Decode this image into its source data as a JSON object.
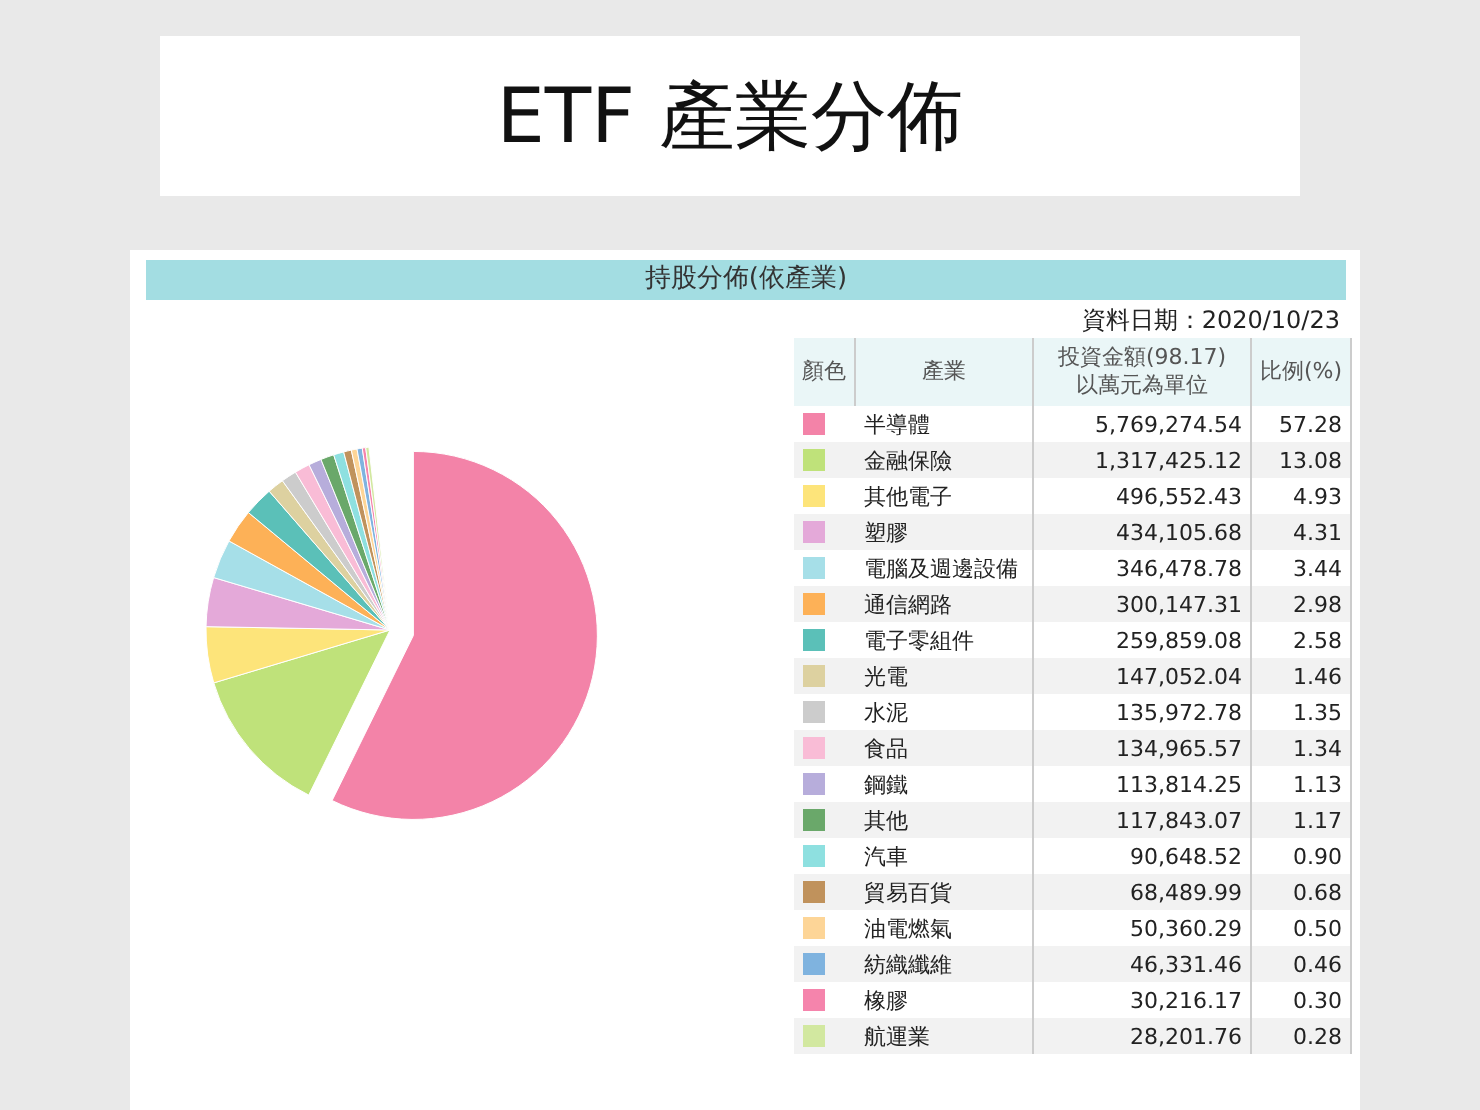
{
  "chart_data": {
    "type": "pie",
    "title": "ETF 產業分佈",
    "subtitle": "持股分佈(依產業)",
    "annotations": [
      "資料日期：2020/10/23",
      "顏色",
      "產業",
      "投資金額(98.17)",
      "以萬元為單位",
      "比例(%)",
      "5,769,274.54",
      "1,317,425.12",
      "496,552.43",
      "434,105.68",
      "346,478.78",
      "300,147.31",
      "259,859.08",
      "147,052.04",
      "135,972.78",
      "134,965.57",
      "113,814.25",
      "117,843.07",
      "90,648.52",
      "68,489.99",
      "50,360.29",
      "46,331.46",
      "30,216.17",
      "28,201.76"
    ],
    "categories": [
      "半導體",
      "金融保險",
      "其他電子",
      "塑膠",
      "電腦及週邊設備",
      "通信網路",
      "電子零組件",
      "光電",
      "水泥",
      "食品",
      "鋼鐵",
      "其他",
      "汽車",
      "貿易百貨",
      "油電燃氣",
      "紡織纖維",
      "橡膠",
      "航運業"
    ],
    "values": [
      57.28,
      13.08,
      4.93,
      4.31,
      3.44,
      2.98,
      2.58,
      1.46,
      1.35,
      1.34,
      1.13,
      1.17,
      0.9,
      0.68,
      0.5,
      0.46,
      0.3,
      0.28
    ],
    "colors": [
      "#f383a8",
      "#bfe27a",
      "#fde47a",
      "#e4a9d9",
      "#a6dfe8",
      "#fdb157",
      "#5bc0b8",
      "#ddd1a0",
      "#cccccc",
      "#f9bcd6",
      "#b7addb",
      "#6aa86a",
      "#8ee0e0",
      "#c0925c",
      "#fdd597",
      "#7fb3df",
      "#f584ac",
      "#d2e8a0"
    ],
    "value_labels": [
      "57.28",
      "13.08",
      "4.93",
      "4.31",
      "3.44",
      "2.98",
      "2.58",
      "1.46",
      "1.35",
      "1.34",
      "1.13",
      "1.17",
      "0.90",
      "0.68",
      "0.50",
      "0.46",
      "0.30",
      "0.28"
    ],
    "legend": "right"
  }
}
